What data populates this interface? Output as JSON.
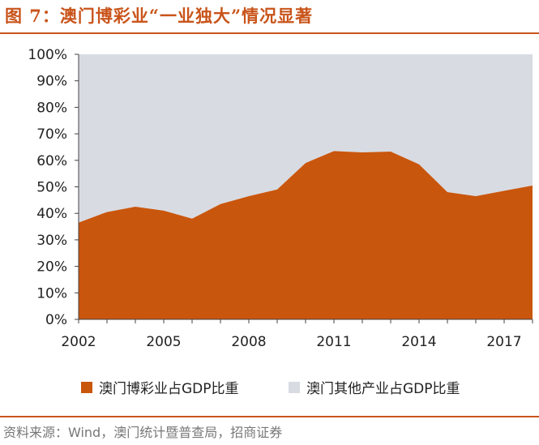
{
  "title": "图 7：澳门博彩业“一业独大”情况显著",
  "source": "资料来源：Wind，澳门统计暨普查局，招商证券",
  "colors": {
    "gaming": "#c9560d",
    "other": "#d8dbe2",
    "accent": "#c9541a"
  },
  "chart_data": {
    "type": "area",
    "stacked": true,
    "y_unit": "percent",
    "ylim": [
      0,
      100
    ],
    "yticks": [
      "0%",
      "10%",
      "20%",
      "30%",
      "40%",
      "50%",
      "60%",
      "70%",
      "80%",
      "90%",
      "100%"
    ],
    "xtick_labels": [
      "2002",
      "2005",
      "2008",
      "2011",
      "2014",
      "2017"
    ],
    "x": [
      2002,
      2003,
      2004,
      2005,
      2006,
      2007,
      2008,
      2009,
      2010,
      2011,
      2012,
      2013,
      2014,
      2015,
      2016,
      2017,
      2018
    ],
    "series": [
      {
        "name": "澳门博彩业占GDP比重",
        "values": [
          36.5,
          40.5,
          42.5,
          41,
          38,
          43.5,
          46.5,
          49,
          59,
          63.5,
          63,
          63.3,
          58.5,
          48,
          46.5,
          48.5,
          50.5
        ]
      },
      {
        "name": "澳门其他产业占GDP比重",
        "values": [
          63.5,
          59.5,
          57.5,
          59,
          62,
          56.5,
          53.5,
          51,
          41,
          36.5,
          37,
          36.7,
          41.5,
          52,
          53.5,
          51.5,
          49.5
        ]
      }
    ],
    "grid": false,
    "legend": "bottom"
  }
}
